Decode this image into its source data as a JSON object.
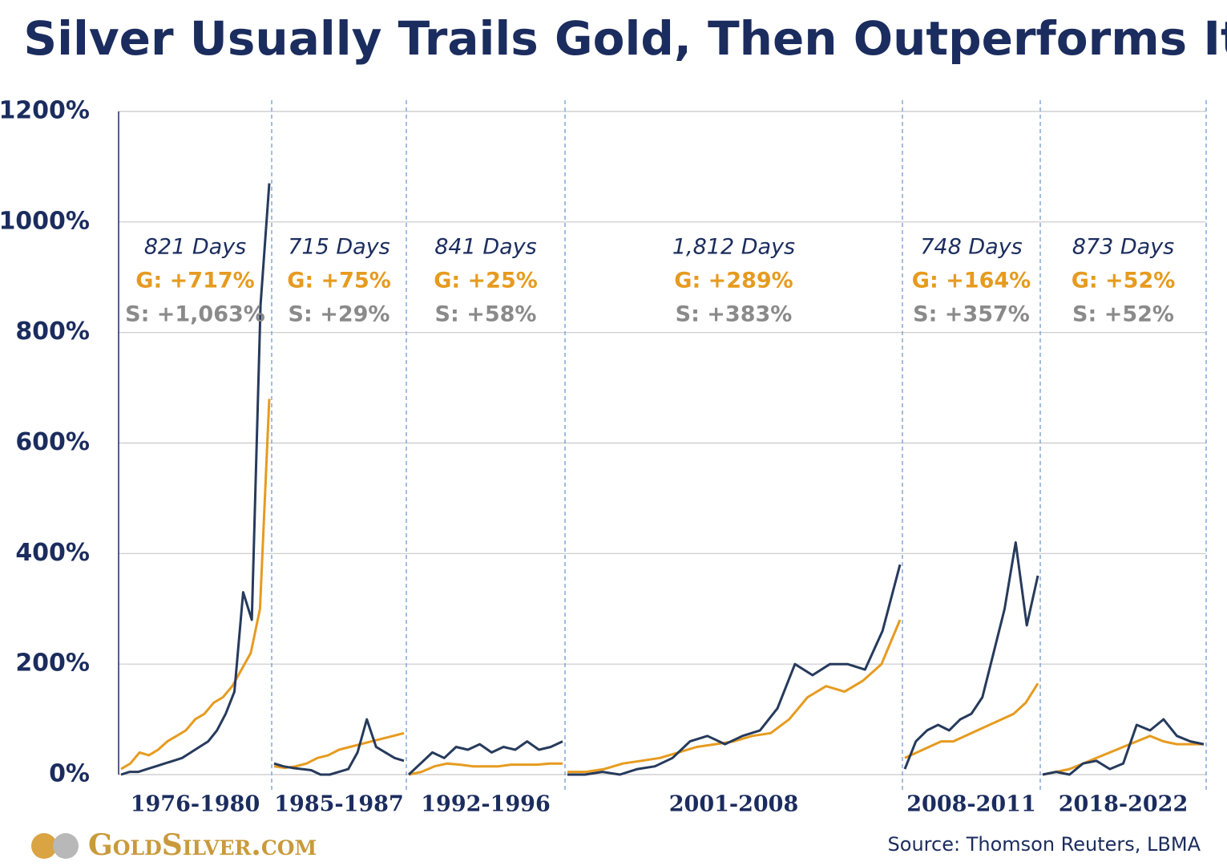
{
  "chart_data": {
    "type": "line",
    "title": "Silver Usually Trails Gold, Then Outperforms It",
    "ylim": [
      0,
      1200
    ],
    "yticks": [
      {
        "value": 0,
        "label": "0%"
      },
      {
        "value": 200,
        "label": "200%"
      },
      {
        "value": 400,
        "label": "400%"
      },
      {
        "value": 600,
        "label": "600%"
      },
      {
        "value": 800,
        "label": "800%"
      },
      {
        "value": 1000,
        "label": "1000%"
      },
      {
        "value": 1200,
        "label": "1200%"
      }
    ],
    "grid": true,
    "gold_color": "#e69b1f",
    "silver_color": "#263a5c",
    "periods": [
      {
        "label": "1976-1980",
        "days": "821 Days",
        "gold_label": "G: +717%",
        "silver_label": "S: +1,063%",
        "gold": [
          10,
          20,
          40,
          35,
          45,
          60,
          70,
          80,
          100,
          110,
          130,
          140,
          160,
          190,
          220,
          300,
          680
        ],
        "silver": [
          0,
          5,
          5,
          10,
          15,
          20,
          25,
          30,
          40,
          50,
          60,
          80,
          110,
          150,
          330,
          280,
          850,
          1070
        ]
      },
      {
        "label": "1985-1987",
        "days": "715 Days",
        "gold_label": "G: +75%",
        "silver_label": "S: +29%",
        "gold": [
          15,
          12,
          15,
          20,
          30,
          35,
          45,
          50,
          55,
          60,
          65,
          70,
          75
        ],
        "silver": [
          20,
          15,
          12,
          10,
          8,
          0,
          0,
          5,
          10,
          40,
          100,
          50,
          40,
          30,
          25
        ]
      },
      {
        "label": "1992-1996",
        "days": "841 Days",
        "gold_label": "G: +25%",
        "silver_label": "S: +58%",
        "gold": [
          0,
          5,
          15,
          20,
          18,
          15,
          15,
          15,
          18,
          18,
          18,
          20,
          20
        ],
        "silver": [
          0,
          20,
          40,
          30,
          50,
          45,
          55,
          40,
          50,
          45,
          60,
          45,
          50,
          60
        ]
      },
      {
        "label": "2001-2008",
        "days": "1,812 Days",
        "gold_label": "G: +289%",
        "silver_label": "S: +383%",
        "gold": [
          5,
          5,
          10,
          20,
          25,
          30,
          40,
          50,
          55,
          60,
          70,
          75,
          100,
          140,
          160,
          150,
          170,
          200,
          280
        ],
        "silver": [
          0,
          0,
          5,
          0,
          10,
          15,
          30,
          60,
          70,
          55,
          70,
          80,
          120,
          200,
          180,
          200,
          200,
          190,
          260,
          380
        ]
      },
      {
        "label": "2008-2011",
        "days": "748 Days",
        "gold_label": "G: +164%",
        "silver_label": "S: +357%",
        "gold": [
          30,
          40,
          50,
          60,
          60,
          70,
          80,
          90,
          100,
          110,
          130,
          165
        ],
        "silver": [
          10,
          60,
          80,
          90,
          80,
          100,
          110,
          140,
          220,
          300,
          420,
          270,
          360
        ]
      },
      {
        "label": "2018-2022",
        "days": "873 Days",
        "gold_label": "G: +52%",
        "silver_label": "S: +52%",
        "gold": [
          0,
          5,
          10,
          20,
          30,
          40,
          50,
          60,
          70,
          60,
          55,
          55,
          55
        ],
        "silver": [
          0,
          5,
          0,
          20,
          25,
          10,
          20,
          90,
          80,
          100,
          70,
          60,
          55
        ]
      }
    ],
    "logo": "GoldSilver.com",
    "source": "Source: Thomson Reuters, LBMA"
  }
}
